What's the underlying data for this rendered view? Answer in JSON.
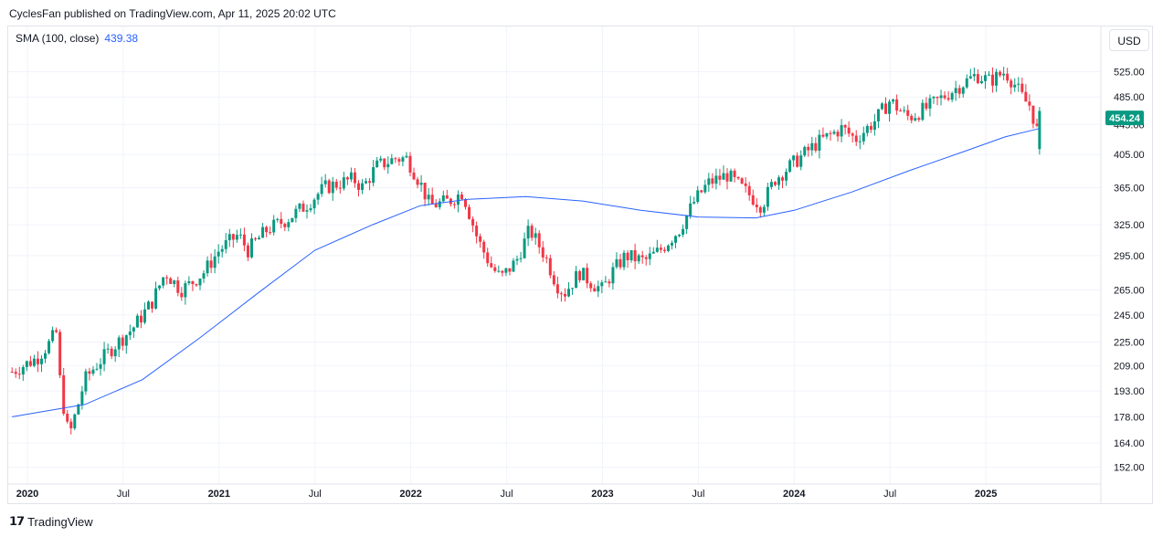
{
  "header": {
    "text": "CyclesFan published on TradingView.com, Apr 11, 2025 20:02 UTC"
  },
  "indicator": {
    "label": "SMA (100, close)",
    "value": "439.38"
  },
  "currency": "USD",
  "footer": {
    "brand": "TradingView"
  },
  "colors": {
    "up": "#089981",
    "down": "#f23645",
    "sma": "#2962ff",
    "grid": "#f0f3fa"
  },
  "chart_data": {
    "type": "candlestick",
    "scale": "log",
    "ylim": [
      145,
      560
    ],
    "price_ticks": [
      "525.00",
      "485.00",
      "445.00",
      "405.00",
      "365.00",
      "325.00",
      "295.00",
      "265.00",
      "245.00",
      "225.00",
      "209.00",
      "193.00",
      "178.00",
      "164.00",
      "152.00"
    ],
    "x_ticks": [
      "2020",
      "Jul",
      "2021",
      "Jul",
      "2022",
      "Jul",
      "2023",
      "Jul",
      "2024",
      "Jul",
      "2025"
    ],
    "last_price_label": "454.24",
    "x_range": [
      2019.9,
      2025.6
    ],
    "weekly_close_path": [
      [
        2019.92,
        205
      ],
      [
        2020.05,
        214
      ],
      [
        2020.12,
        225
      ],
      [
        2020.15,
        233
      ],
      [
        2020.17,
        200
      ],
      [
        2020.2,
        175
      ],
      [
        2020.22,
        168
      ],
      [
        2020.26,
        183
      ],
      [
        2020.3,
        200
      ],
      [
        2020.35,
        208
      ],
      [
        2020.45,
        222
      ],
      [
        2020.55,
        235
      ],
      [
        2020.65,
        255
      ],
      [
        2020.72,
        280
      ],
      [
        2020.8,
        265
      ],
      [
        2020.85,
        270
      ],
      [
        2020.92,
        280
      ],
      [
        2021.0,
        300
      ],
      [
        2021.1,
        315
      ],
      [
        2021.15,
        300
      ],
      [
        2021.25,
        320
      ],
      [
        2021.35,
        330
      ],
      [
        2021.45,
        345
      ],
      [
        2021.55,
        365
      ],
      [
        2021.7,
        375
      ],
      [
        2021.75,
        365
      ],
      [
        2021.82,
        390
      ],
      [
        2021.92,
        400
      ],
      [
        2021.98,
        400
      ],
      [
        2022.05,
        370
      ],
      [
        2022.1,
        345
      ],
      [
        2022.2,
        350
      ],
      [
        2022.27,
        360
      ],
      [
        2022.35,
        310
      ],
      [
        2022.42,
        285
      ],
      [
        2022.47,
        275
      ],
      [
        2022.55,
        290
      ],
      [
        2022.62,
        320
      ],
      [
        2022.7,
        295
      ],
      [
        2022.76,
        270
      ],
      [
        2022.8,
        262
      ],
      [
        2022.88,
        280
      ],
      [
        2022.95,
        270
      ],
      [
        2023.0,
        265
      ],
      [
        2023.05,
        280
      ],
      [
        2023.12,
        295
      ],
      [
        2023.22,
        290
      ],
      [
        2023.3,
        300
      ],
      [
        2023.4,
        320
      ],
      [
        2023.48,
        350
      ],
      [
        2023.55,
        370
      ],
      [
        2023.65,
        380
      ],
      [
        2023.75,
        360
      ],
      [
        2023.83,
        345
      ],
      [
        2023.9,
        375
      ],
      [
        2024.0,
        395
      ],
      [
        2024.12,
        420
      ],
      [
        2024.25,
        440
      ],
      [
        2024.32,
        425
      ],
      [
        2024.42,
        450
      ],
      [
        2024.5,
        480
      ],
      [
        2024.57,
        460
      ],
      [
        2024.6,
        455
      ],
      [
        2024.7,
        470
      ],
      [
        2024.8,
        490
      ],
      [
        2024.9,
        510
      ],
      [
        2024.95,
        520
      ],
      [
        2025.02,
        510
      ],
      [
        2025.1,
        525
      ],
      [
        2025.15,
        505
      ],
      [
        2025.2,
        480
      ],
      [
        2025.24,
        470
      ],
      [
        2025.26,
        430
      ],
      [
        2025.28,
        454.24
      ]
    ],
    "sma_path": [
      [
        2019.92,
        178
      ],
      [
        2020.3,
        185
      ],
      [
        2020.6,
        200
      ],
      [
        2020.9,
        228
      ],
      [
        2021.2,
        262
      ],
      [
        2021.5,
        300
      ],
      [
        2021.8,
        325
      ],
      [
        2022.05,
        345
      ],
      [
        2022.3,
        352
      ],
      [
        2022.6,
        355
      ],
      [
        2022.9,
        350
      ],
      [
        2023.2,
        340
      ],
      [
        2023.5,
        333
      ],
      [
        2023.8,
        332
      ],
      [
        2024.0,
        340
      ],
      [
        2024.3,
        360
      ],
      [
        2024.6,
        385
      ],
      [
        2024.9,
        410
      ],
      [
        2025.1,
        428
      ],
      [
        2025.28,
        439.38
      ]
    ]
  }
}
